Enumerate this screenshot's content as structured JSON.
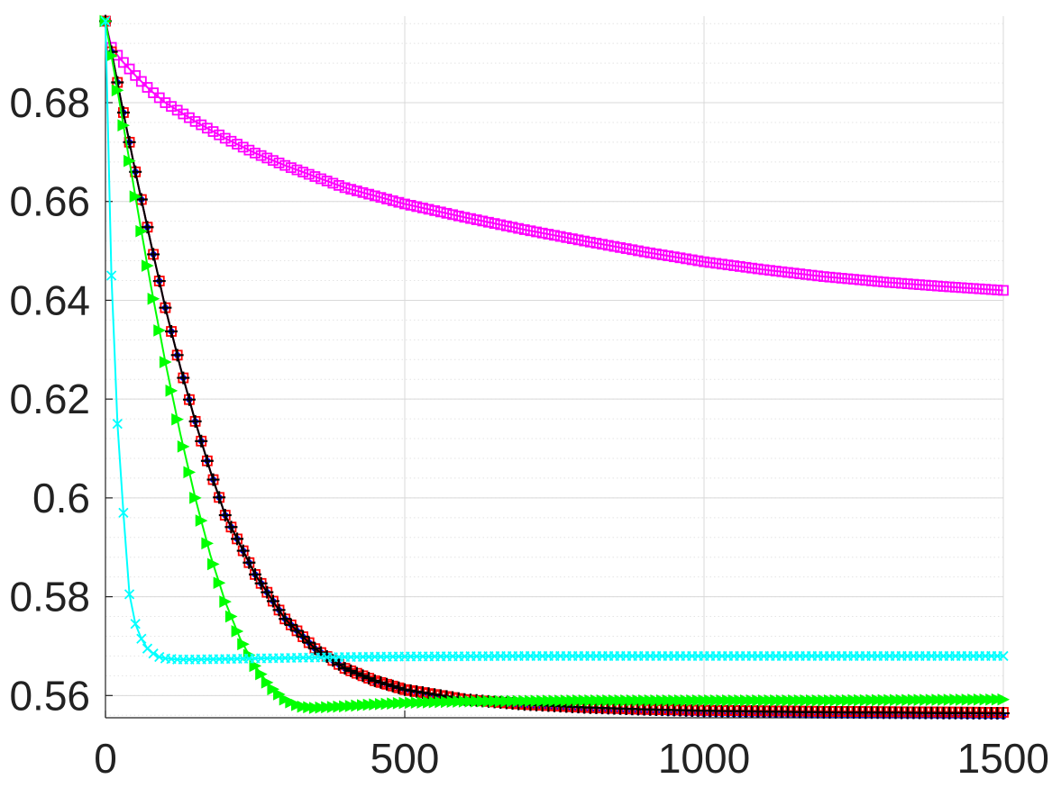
{
  "chart_data": {
    "type": "line",
    "title": "",
    "xlabel": "",
    "ylabel": "",
    "xlim": [
      0,
      1500
    ],
    "ylim": [
      0.5555,
      0.6975
    ],
    "x_ticks": [
      0,
      500,
      1000,
      1500
    ],
    "x_tick_labels": [
      "0",
      "500",
      "1000",
      "1500"
    ],
    "y_ticks": [
      0.56,
      0.58,
      0.6,
      0.62,
      0.64,
      0.66,
      0.68
    ],
    "y_tick_labels": [
      "0.56",
      "0.58",
      "0.6",
      "0.62",
      "0.64",
      "0.66",
      "0.68"
    ],
    "y_minor_step": 0.004,
    "grid": true,
    "legend": "none",
    "series": [
      {
        "color": "#ff00ff",
        "marker": "square",
        "x": [
          0,
          10,
          25,
          50,
          75,
          100,
          150,
          200,
          250,
          300,
          400,
          500,
          600,
          700,
          800,
          900,
          1000,
          1100,
          1200,
          1300,
          1400,
          1500
        ],
        "y": [
          0.6965,
          0.6912,
          0.6888,
          0.6855,
          0.6825,
          0.68,
          0.6762,
          0.6728,
          0.6698,
          0.6673,
          0.6628,
          0.6595,
          0.6568,
          0.6543,
          0.652,
          0.6498,
          0.6478,
          0.6462,
          0.6448,
          0.6437,
          0.6428,
          0.642
        ]
      },
      {
        "color": "#0000ff",
        "marker": "dot",
        "x": [
          0,
          25,
          50,
          75,
          100,
          125,
          150,
          175,
          200,
          250,
          300,
          350,
          400,
          450,
          500,
          600,
          700,
          800,
          900,
          1000,
          1200,
          1500
        ],
        "y": [
          0.6965,
          0.681,
          0.666,
          0.652,
          0.6385,
          0.6265,
          0.6155,
          0.6055,
          0.5965,
          0.5845,
          0.5755,
          0.5695,
          0.5655,
          0.5628,
          0.561,
          0.5588,
          0.5577,
          0.557,
          0.5566,
          0.5563,
          0.556,
          0.5558
        ]
      },
      {
        "color": "#ff0000",
        "marker": "square",
        "x": [
          0,
          25,
          50,
          75,
          100,
          125,
          150,
          175,
          200,
          250,
          300,
          350,
          400,
          450,
          500,
          600,
          700,
          800,
          900,
          1000,
          1200,
          1500
        ],
        "y": [
          0.6965,
          0.681,
          0.666,
          0.652,
          0.6385,
          0.6265,
          0.6155,
          0.6055,
          0.5965,
          0.5845,
          0.5755,
          0.5695,
          0.5655,
          0.563,
          0.5612,
          0.5592,
          0.5582,
          0.5576,
          0.5572,
          0.557,
          0.5568,
          0.5566
        ]
      },
      {
        "color": "#000000",
        "marker": "plus",
        "x": [
          0,
          25,
          50,
          75,
          100,
          125,
          150,
          175,
          200,
          250,
          300,
          350,
          400,
          450,
          500,
          600,
          700,
          800,
          900,
          1000,
          1200,
          1500
        ],
        "y": [
          0.6965,
          0.681,
          0.666,
          0.652,
          0.6385,
          0.6265,
          0.6155,
          0.6055,
          0.5965,
          0.5845,
          0.5755,
          0.5695,
          0.5655,
          0.563,
          0.5612,
          0.5592,
          0.5582,
          0.5576,
          0.5572,
          0.5569,
          0.5566,
          0.5564
        ]
      },
      {
        "color": "#00ff00",
        "marker": "triangle",
        "x": [
          0,
          25,
          50,
          75,
          100,
          125,
          150,
          175,
          200,
          225,
          250,
          275,
          300,
          325,
          350,
          400,
          450,
          500,
          600,
          700,
          800,
          1000,
          1200,
          1500
        ],
        "y": [
          0.6965,
          0.679,
          0.661,
          0.6435,
          0.6275,
          0.613,
          0.6,
          0.5885,
          0.579,
          0.5715,
          0.566,
          0.5618,
          0.5592,
          0.5578,
          0.5575,
          0.5578,
          0.5582,
          0.5585,
          0.5588,
          0.5589,
          0.559,
          0.559,
          0.559,
          0.5592
        ]
      },
      {
        "color": "#00ffff",
        "marker": "x",
        "x": [
          0,
          10,
          20,
          30,
          40,
          50,
          60,
          70,
          80,
          90,
          100,
          120,
          150,
          200,
          300,
          400,
          500,
          700,
          1000,
          1200,
          1500
        ],
        "y": [
          0.6965,
          0.645,
          0.615,
          0.597,
          0.5805,
          0.5745,
          0.5715,
          0.5695,
          0.5685,
          0.5678,
          0.5675,
          0.5673,
          0.5673,
          0.5674,
          0.5676,
          0.5678,
          0.5679,
          0.568,
          0.568,
          0.568,
          0.568
        ]
      }
    ]
  }
}
